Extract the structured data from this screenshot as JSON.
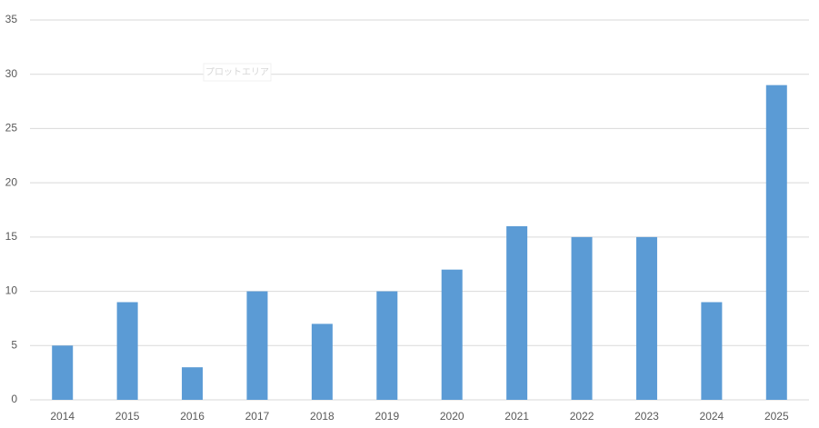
{
  "chart_data": {
    "type": "bar",
    "categories": [
      "2014",
      "2015",
      "2016",
      "2017",
      "2018",
      "2019",
      "2020",
      "2021",
      "2022",
      "2023",
      "2024",
      "2025"
    ],
    "values": [
      5,
      9,
      3,
      10,
      7,
      10,
      12,
      16,
      15,
      15,
      9,
      29
    ],
    "color": "#5b9bd5",
    "ylim": [
      0,
      35
    ],
    "yticks": [
      0,
      5,
      10,
      15,
      20,
      25,
      30,
      35
    ],
    "grid": true,
    "annotation": "プロットエリア"
  }
}
